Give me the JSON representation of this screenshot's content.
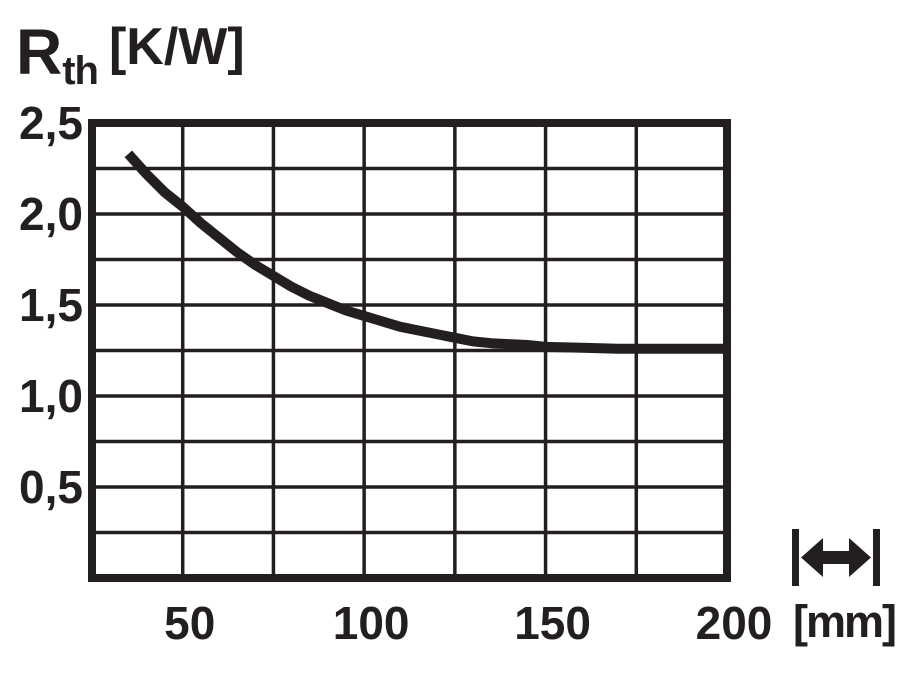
{
  "title": {
    "symbol": "R",
    "subscript": "th",
    "unit_label": "[K/W]"
  },
  "x_axis": {
    "unit_label": "[mm]"
  },
  "colors": {
    "ink": "#231f20",
    "background": "#ffffff"
  },
  "icons": {
    "dimension_icon": "horizontal double-headed arrow between end bars (length dimension)"
  },
  "chart_data": {
    "type": "line",
    "ylabel": "Rth [K/W]",
    "xlabel": "[mm]",
    "xlim": [
      25,
      200
    ],
    "ylim": [
      0,
      2.5
    ],
    "x_grid_step": 25,
    "y_grid_step": 0.25,
    "grid": true,
    "legend": false,
    "x_ticks": [
      {
        "value": 50,
        "label": "50"
      },
      {
        "value": 100,
        "label": "100"
      },
      {
        "value": 150,
        "label": "150"
      },
      {
        "value": 200,
        "label": "200"
      }
    ],
    "y_ticks": [
      {
        "value": 2.5,
        "label": "2,5"
      },
      {
        "value": 2.0,
        "label": "2,0"
      },
      {
        "value": 1.5,
        "label": "1,5"
      },
      {
        "value": 1.0,
        "label": "1,0"
      },
      {
        "value": 0.5,
        "label": "0,5"
      }
    ],
    "series": [
      {
        "name": "Rth",
        "points": [
          [
            35,
            2.33
          ],
          [
            40,
            2.22
          ],
          [
            45,
            2.12
          ],
          [
            50,
            2.04
          ],
          [
            55,
            1.95
          ],
          [
            60,
            1.87
          ],
          [
            65,
            1.79
          ],
          [
            70,
            1.72
          ],
          [
            75,
            1.66
          ],
          [
            80,
            1.6
          ],
          [
            85,
            1.55
          ],
          [
            90,
            1.51
          ],
          [
            95,
            1.47
          ],
          [
            100,
            1.44
          ],
          [
            105,
            1.41
          ],
          [
            110,
            1.38
          ],
          [
            115,
            1.36
          ],
          [
            120,
            1.34
          ],
          [
            125,
            1.32
          ],
          [
            130,
            1.3
          ],
          [
            135,
            1.29
          ],
          [
            140,
            1.285
          ],
          [
            145,
            1.28
          ],
          [
            150,
            1.27
          ],
          [
            160,
            1.265
          ],
          [
            170,
            1.26
          ],
          [
            180,
            1.26
          ],
          [
            190,
            1.26
          ],
          [
            200,
            1.26
          ]
        ]
      }
    ]
  }
}
